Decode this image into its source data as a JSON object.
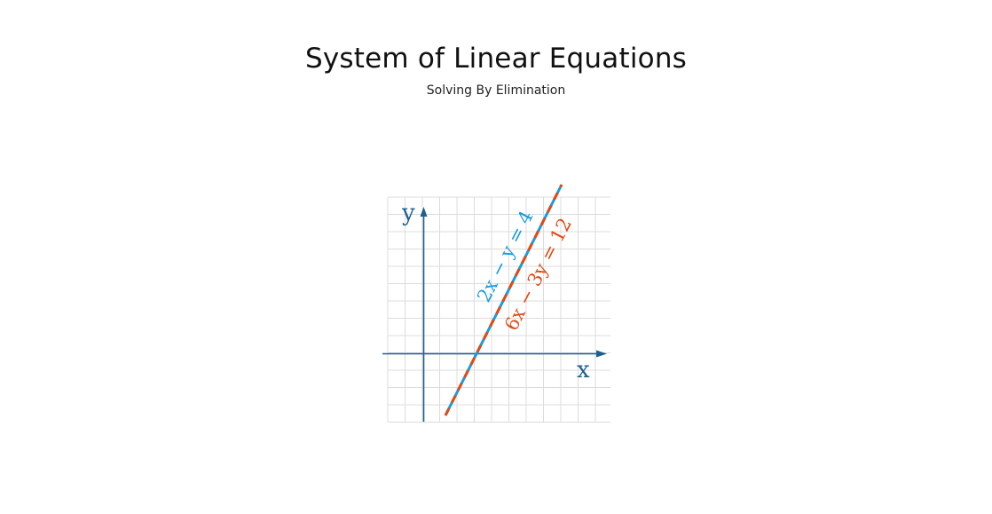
{
  "header": {
    "title": "System of Linear Equations",
    "subtitle": "Solving By Elimination"
  },
  "graph": {
    "axis_x_label": "x",
    "axis_y_label": "y",
    "equations": [
      {
        "label": "2x − y = 4",
        "color": "#1a9be0",
        "style": "solid"
      },
      {
        "label": "6x − 3y = 12",
        "color": "#e24a12",
        "style": "dashed"
      }
    ],
    "colors": {
      "axis": "#1f5f8f",
      "grid": "#dcdcdc"
    }
  }
}
